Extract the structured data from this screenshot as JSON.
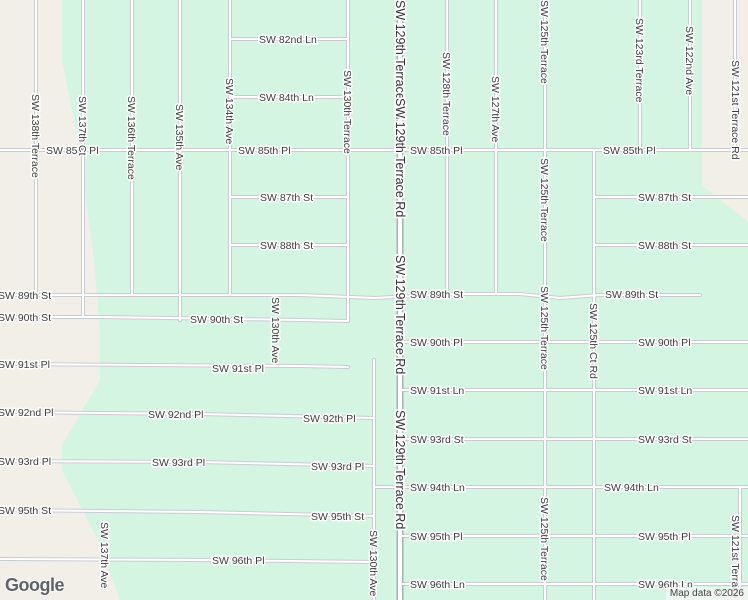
{
  "map": {
    "colors": {
      "land": "#f2efe9",
      "area": "#d4f5e1",
      "road_fill": "#ffffff",
      "road_edge": "#c9ccd1",
      "major_road_edge": "#aab0b8",
      "label": "#3c3c3c"
    },
    "streets": {
      "sw_129th_terrace_rd": "SW 129th Terrace Rd",
      "sw_82nd_ln": "SW 82nd Ln",
      "sw_84th_ln": "SW 84th Ln",
      "sw_85th_pl": "SW 85th Pl",
      "sw_87th_st": "SW 87th St",
      "sw_88th_st": "SW 88th St",
      "sw_89th_st": "SW 89th St",
      "sw_90th_st": "SW 90th St",
      "sw_90th_pl": "SW 90th Pl",
      "sw_91st_pl": "SW 91st Pl",
      "sw_91st_ln": "SW 91st Ln",
      "sw_92nd_pl": "SW 92nd Pl",
      "sw_92th_pl": "SW 92th Pl",
      "sw_93rd_pl": "SW 93rd Pl",
      "sw_93rd_st": "SW 93rd St",
      "sw_94th_ln": "SW 94th Ln",
      "sw_95th_st": "SW 95th St",
      "sw_95th_pl": "SW 95th Pl",
      "sw_96th_pl": "SW 96th Pl",
      "sw_96th_ln": "SW 96th Ln",
      "sw_138th_terrace": "SW 138th Terrace",
      "sw_137th_ct": "SW 137th Ct",
      "sw_136th_terrace": "SW 136th Terrace",
      "sw_135th_ave": "SW 135th Ave",
      "sw_134th_ave": "SW 134th Ave",
      "sw_130th_terrace": "SW 130th Terrace",
      "sw_130th_ave": "SW 130th Ave",
      "sw_128th_terrace": "SW 128th Terrace",
      "sw_127th_ave": "SW 127th Ave",
      "sw_125th_terrace": "SW 125th Terrace",
      "sw_125th_ct_rd": "SW 125th Ct Rd",
      "sw_123rd_terrace": "SW 123rd Terrace",
      "sw_122nd_ave": "SW 122nd Ave",
      "sw_121st_terrace_rd": "SW 121st Terrace Rd",
      "sw_121st_terrace": "SW 121st Terrace",
      "sw_137th_ave": "SW 137th Ave"
    },
    "google_logo": "Google",
    "attribution": "Map data ©2026"
  }
}
